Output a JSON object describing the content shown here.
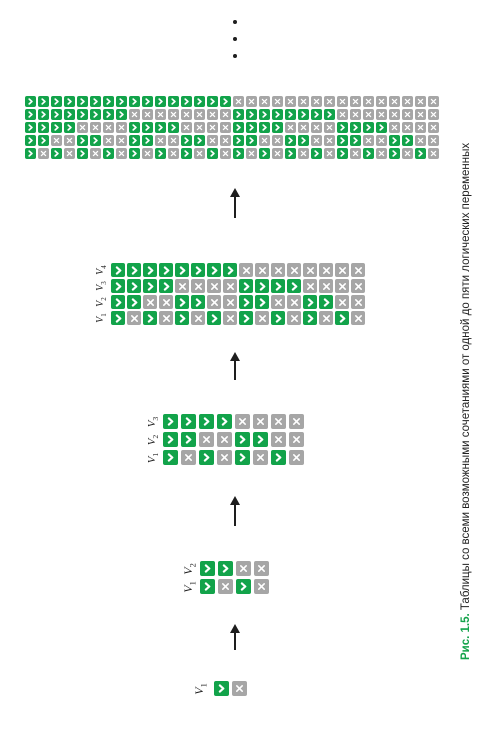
{
  "caption": {
    "figure_label": "Рис. 1.5.",
    "text": "Таблицы со всеми возможными сочетаниями от одной до пяти логических переменных"
  },
  "colors": {
    "true": "#12a34a",
    "false": "#a6a6a6",
    "mark": "#ffffff",
    "arrow": "#1e1e1e",
    "caption_label": "#12a34a"
  },
  "icons": {
    "true": "check-mark-icon",
    "false": "cross-mark-icon"
  },
  "continuation": "ellipsis-dots",
  "tables": [
    {
      "variables": 1,
      "labels": [
        {
          "letter": "V",
          "sub": "1"
        }
      ]
    },
    {
      "variables": 2,
      "labels": [
        {
          "letter": "V",
          "sub": "1"
        },
        {
          "letter": "V",
          "sub": "2"
        }
      ]
    },
    {
      "variables": 3,
      "labels": [
        {
          "letter": "V",
          "sub": "1"
        },
        {
          "letter": "V",
          "sub": "2"
        },
        {
          "letter": "V",
          "sub": "3"
        }
      ]
    },
    {
      "variables": 4,
      "labels": [
        {
          "letter": "V",
          "sub": "1"
        },
        {
          "letter": "V",
          "sub": "2"
        },
        {
          "letter": "V",
          "sub": "3"
        },
        {
          "letter": "V",
          "sub": "4"
        }
      ]
    },
    {
      "variables": 5,
      "labels": []
    }
  ]
}
